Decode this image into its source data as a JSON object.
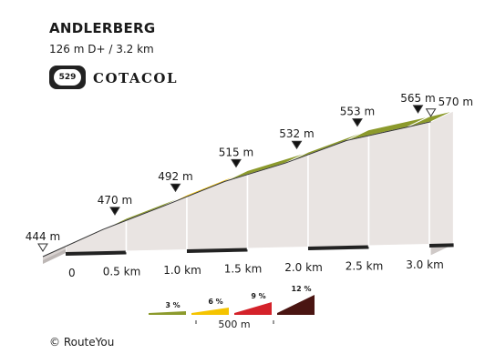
{
  "header": {
    "title": "ANDLERBERG",
    "stats": "126 m D+ / 3.2 km",
    "badge_number": "529",
    "brand": "COTACOL"
  },
  "footer": {
    "copyright": "© RouteYou"
  },
  "chart_data": {
    "type": "area",
    "title": "ANDLERBERG",
    "x_unit": "km",
    "y_unit": "m",
    "points": [
      {
        "km": 0.0,
        "elev": 444,
        "label": "444 m"
      },
      {
        "km": 0.5,
        "elev": 470,
        "label": "470 m"
      },
      {
        "km": 1.0,
        "elev": 492,
        "label": "492 m"
      },
      {
        "km": 1.5,
        "elev": 515,
        "label": "515 m"
      },
      {
        "km": 2.0,
        "elev": 532,
        "label": "532 m"
      },
      {
        "km": 2.5,
        "elev": 553,
        "label": "553 m"
      },
      {
        "km": 3.0,
        "elev": 565,
        "label": "565 m"
      },
      {
        "km": 3.2,
        "elev": 570,
        "label": "570 m"
      }
    ],
    "x_ticks": [
      {
        "km": 0.0,
        "label": "0"
      },
      {
        "km": 0.5,
        "label": "0.5 km"
      },
      {
        "km": 1.0,
        "label": "1.0 km"
      },
      {
        "km": 1.5,
        "label": "1.5 km"
      },
      {
        "km": 2.0,
        "label": "2.0 km"
      },
      {
        "km": 2.5,
        "label": "2.5 km"
      },
      {
        "km": 3.0,
        "label": "3.0 km"
      }
    ],
    "gradient_legend": {
      "items": [
        {
          "label": "3 %",
          "color": "#8c9a2c"
        },
        {
          "label": "6 %",
          "color": "#f5c400"
        },
        {
          "label": "9 %",
          "color": "#d4222a"
        },
        {
          "label": "12 %",
          "color": "#4a1512"
        }
      ],
      "scale_label": "500 m"
    }
  }
}
